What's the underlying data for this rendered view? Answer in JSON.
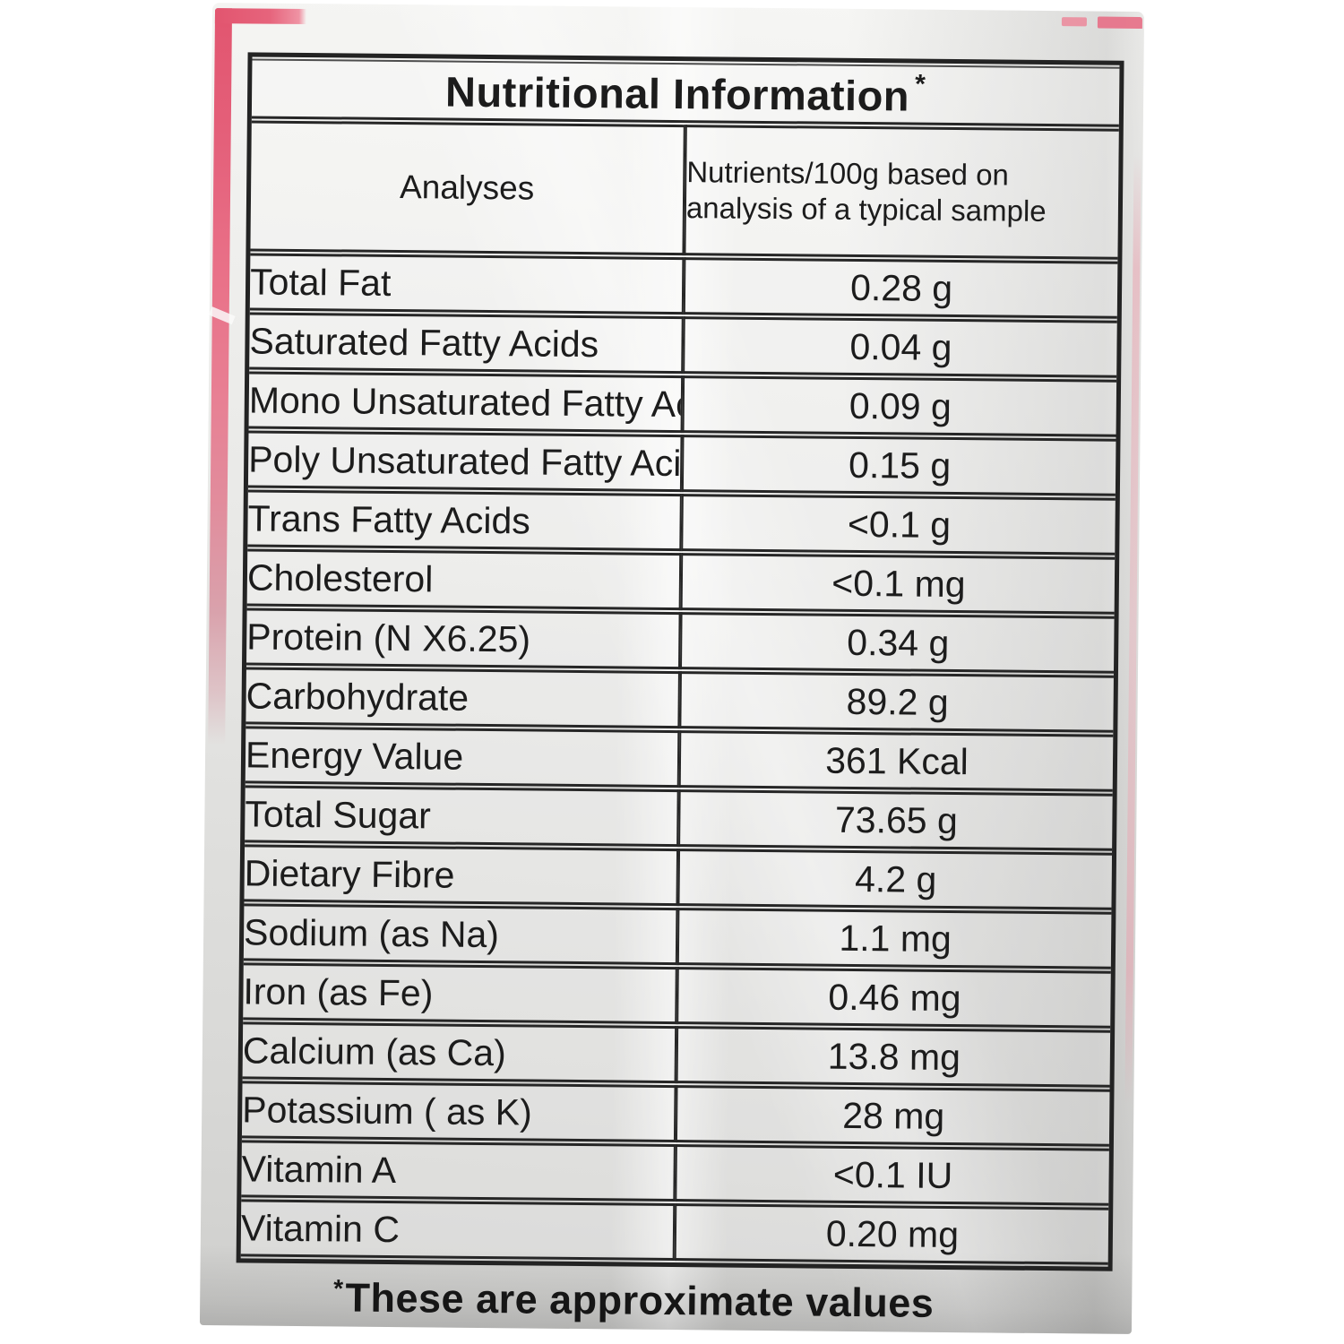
{
  "package": {
    "accent_pink": "#e2556f",
    "surface_base": "#e9e9e7",
    "border_color": "#232323"
  },
  "table": {
    "title": "Nutritional Information",
    "title_asterisk": "*",
    "columns": {
      "analyses": "Analyses",
      "nutrients": "Nutrients/100g based on analysis of a typical sample"
    },
    "rows": [
      {
        "label": "Total Fat",
        "value": "0.28 g"
      },
      {
        "label": "Saturated Fatty Acids",
        "value": "0.04 g"
      },
      {
        "label": "Mono Unsaturated Fatty Acids",
        "value": "0.09 g"
      },
      {
        "label": "Poly Unsaturated Fatty Acids",
        "value": "0.15 g"
      },
      {
        "label": "Trans Fatty Acids",
        "value": "<0.1 g"
      },
      {
        "label": "Cholesterol",
        "value": "<0.1 mg"
      },
      {
        "label": "Protein (N X6.25)",
        "value": "0.34 g"
      },
      {
        "label": "Carbohydrate",
        "value": "89.2 g"
      },
      {
        "label": "Energy Value",
        "value": "361 Kcal"
      },
      {
        "label": "Total Sugar",
        "value": "73.65 g"
      },
      {
        "label": "Dietary Fibre",
        "value": "4.2 g"
      },
      {
        "label": "Sodium (as Na)",
        "value": "1.1 mg"
      },
      {
        "label": "Iron (as Fe)",
        "value": "0.46 mg"
      },
      {
        "label": "Calcium (as Ca)",
        "value": "13.8 mg"
      },
      {
        "label": "Potassium ( as K)",
        "value": "28 mg"
      },
      {
        "label": "Vitamin A",
        "value": "<0.1 IU"
      },
      {
        "label": "Vitamin C",
        "value": "0.20 mg"
      }
    ]
  },
  "footnote": {
    "asterisk": "*",
    "text": "These are approximate values"
  }
}
